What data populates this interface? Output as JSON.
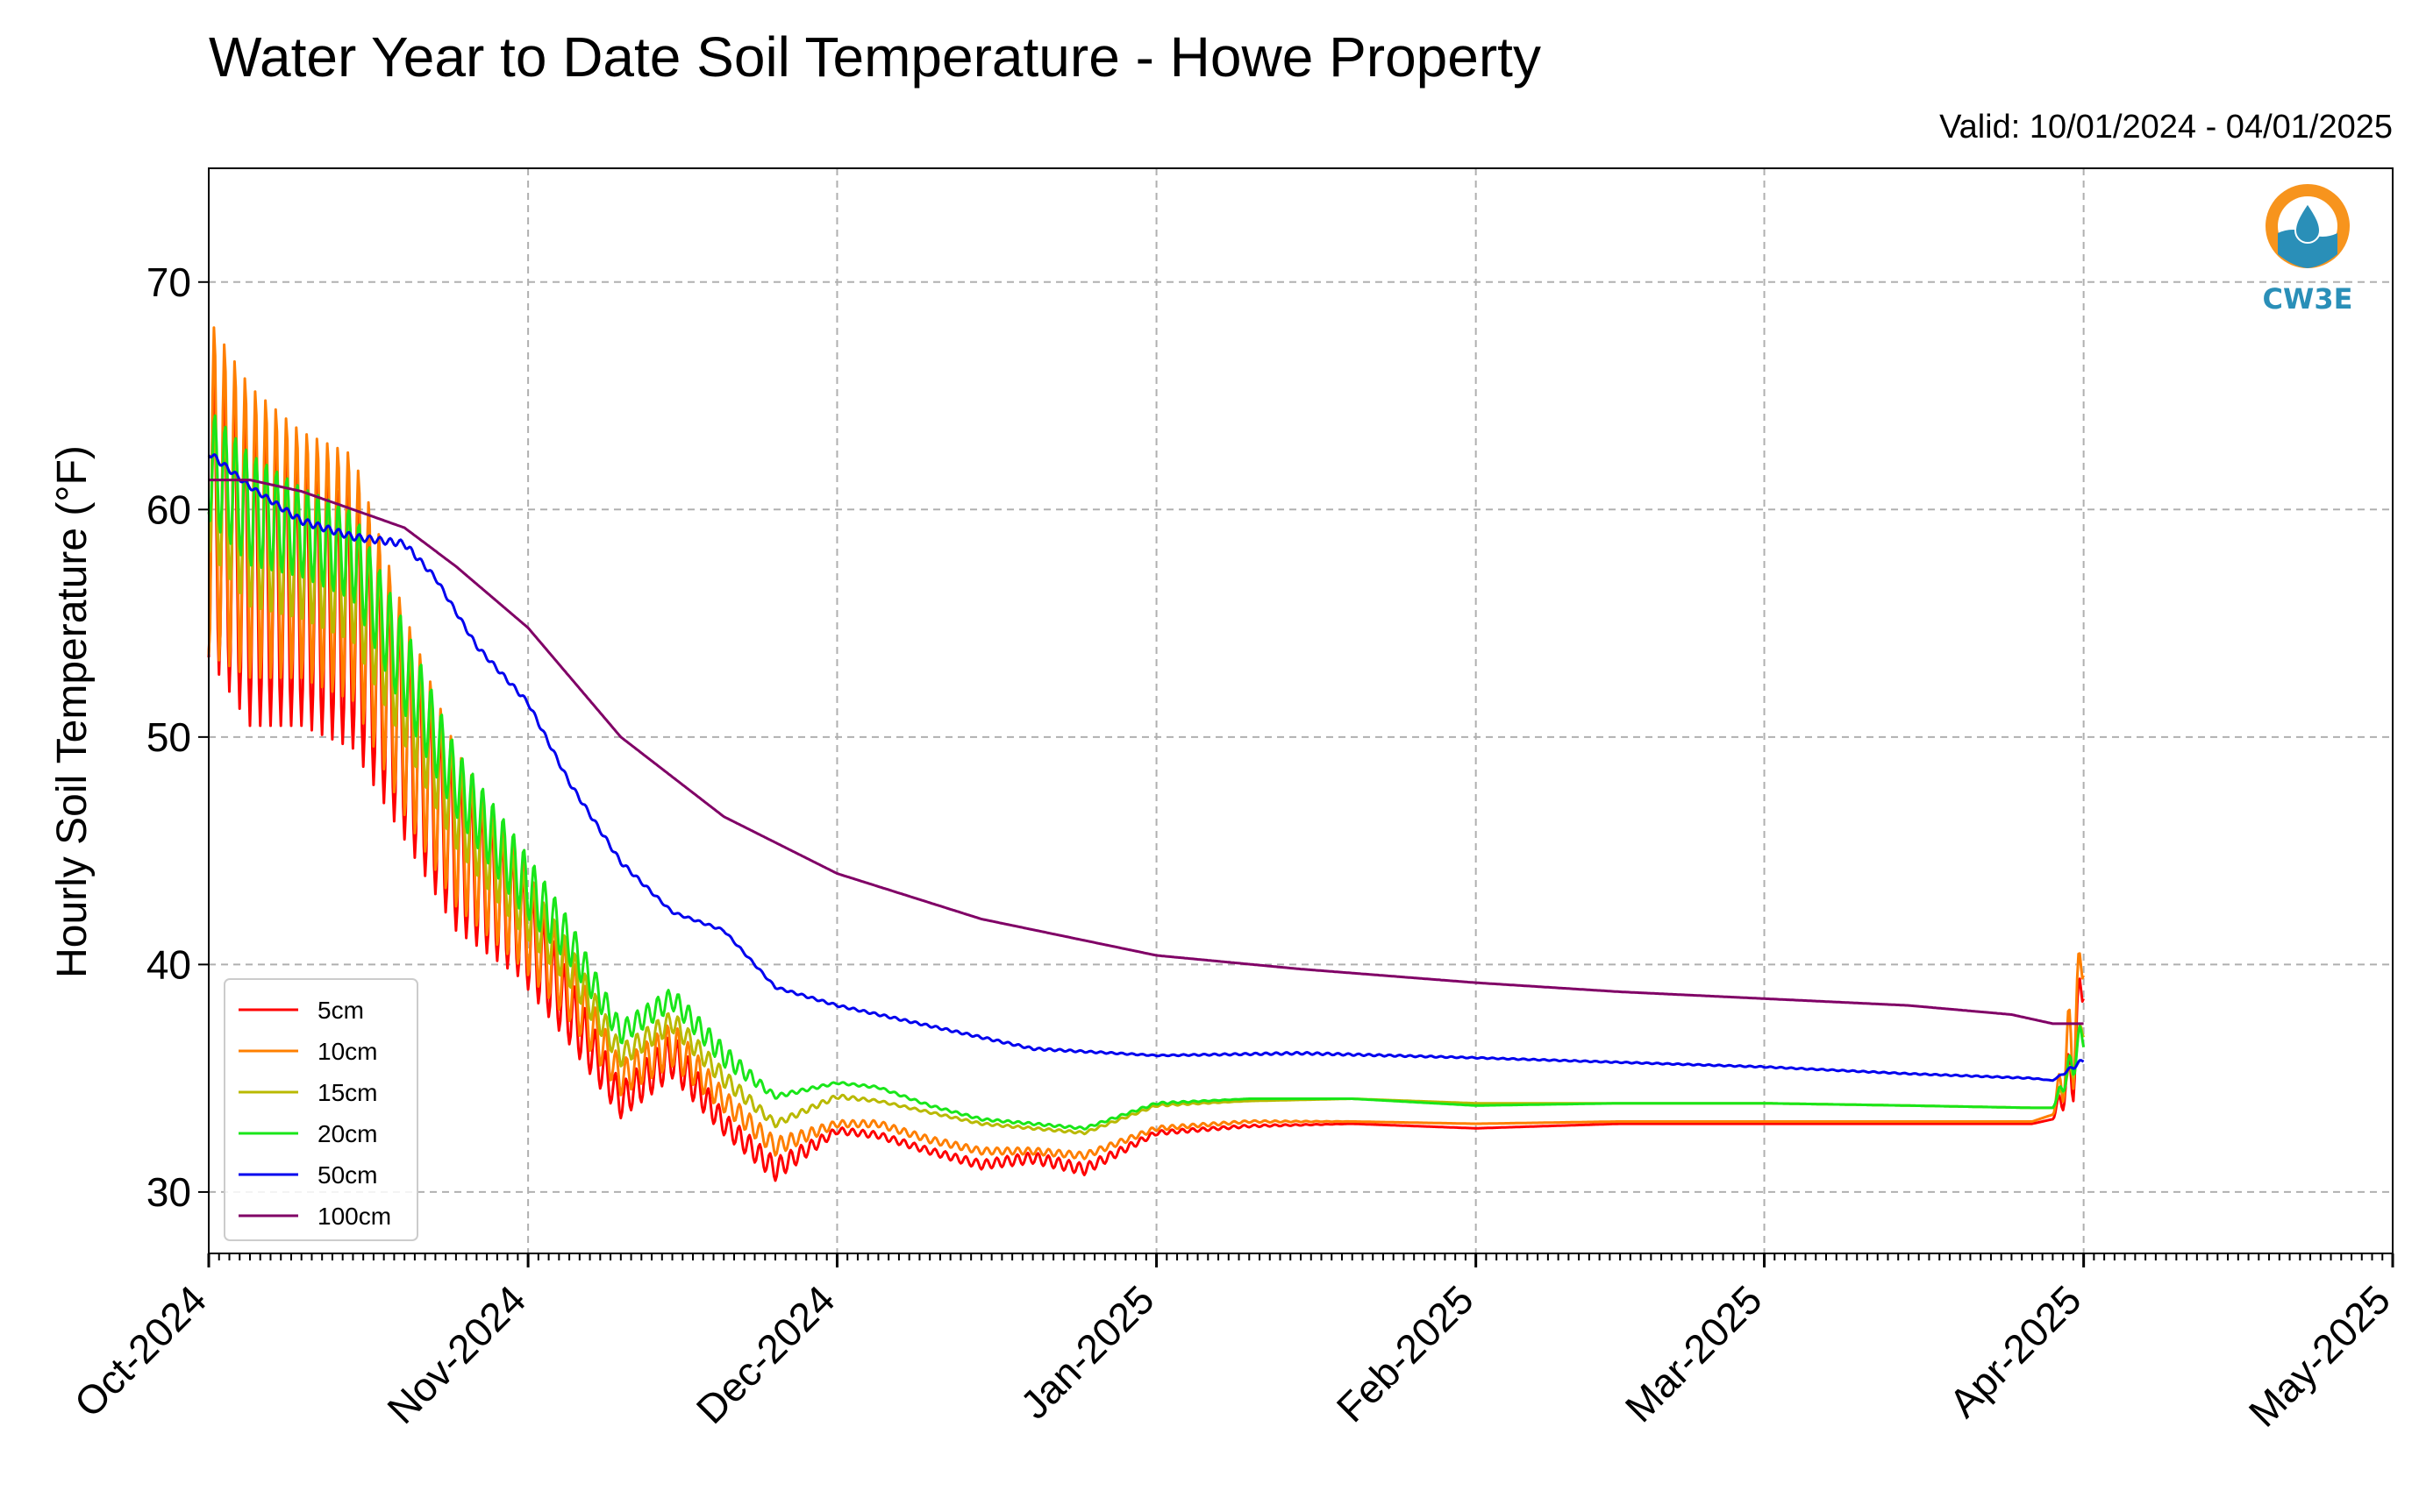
{
  "chart_data": {
    "type": "line",
    "title": "Water Year to Date Soil Temperature - Howe Property",
    "subtitle": "Valid: 10/01/2024 - 04/01/2025",
    "ylabel": "Hourly Soil Temperature (°F)",
    "xlabel": "",
    "ylim": [
      27.3,
      75
    ],
    "xlim": [
      "2024-10-01",
      "2025-05-01"
    ],
    "yticks": [
      30,
      40,
      50,
      60,
      70
    ],
    "xticks": [
      "Oct-2024",
      "Nov-2024",
      "Dec-2024",
      "Jan-2025",
      "Feb-2025",
      "Mar-2025",
      "Apr-2025",
      "May-2025"
    ],
    "grid": true,
    "legend_position": "lower-left",
    "logo_text": "CW3E",
    "series": [
      {
        "name": "5cm",
        "color": "#ff0000",
        "x": [
          "2024-10-01",
          "2024-10-05",
          "2024-10-10",
          "2024-10-15",
          "2024-10-20",
          "2024-10-25",
          "2024-10-31",
          "2024-11-05",
          "2024-11-10",
          "2024-11-15",
          "2024-11-20",
          "2024-11-25",
          "2024-12-01",
          "2024-12-05",
          "2024-12-10",
          "2024-12-15",
          "2024-12-20",
          "2024-12-25",
          "2025-01-01",
          "2025-01-10",
          "2025-01-20",
          "2025-02-01",
          "2025-02-15",
          "2025-03-01",
          "2025-03-15",
          "2025-03-27",
          "2025-03-29",
          "2025-03-31",
          "2025-04-01"
        ],
        "y": [
          60,
          57,
          56,
          55,
          50,
          45,
          42,
          38,
          34,
          36,
          33,
          31,
          32.7,
          32.5,
          31.8,
          31.2,
          31.5,
          31.0,
          32.6,
          32.9,
          33.0,
          32.8,
          33.0,
          33.0,
          33.0,
          33.0,
          33.2,
          35.5,
          40.0
        ],
        "swing": [
          13,
          13,
          11,
          11,
          9,
          7,
          5,
          3,
          1.5,
          2,
          1,
          1,
          0.3,
          0.3,
          0.3,
          0.4,
          0.5,
          0.5,
          0.2,
          0.1,
          0,
          0,
          0,
          0,
          0,
          0,
          0,
          3,
          3
        ]
      },
      {
        "name": "10cm",
        "color": "#ff7f00",
        "x": [
          "2024-10-01",
          "2024-10-05",
          "2024-10-10",
          "2024-10-15",
          "2024-10-20",
          "2024-10-25",
          "2024-10-31",
          "2024-11-05",
          "2024-11-10",
          "2024-11-15",
          "2024-11-20",
          "2024-11-25",
          "2024-12-01",
          "2024-12-05",
          "2024-12-10",
          "2024-12-15",
          "2024-12-20",
          "2024-12-25",
          "2025-01-01",
          "2025-01-10",
          "2025-01-20",
          "2025-02-01",
          "2025-02-15",
          "2025-03-01",
          "2025-03-15",
          "2025-03-27",
          "2025-03-29",
          "2025-03-31",
          "2025-04-01"
        ],
        "y": [
          61,
          59,
          58,
          57,
          51,
          46,
          42.5,
          39,
          35,
          36.5,
          34,
          32,
          33.0,
          33.0,
          32.3,
          31.8,
          31.8,
          31.6,
          32.8,
          33.1,
          33.1,
          33.0,
          33.1,
          33.1,
          33.1,
          33.1,
          33.4,
          37,
          40.5
        ],
        "swing": [
          15,
          13,
          11,
          11,
          9,
          7,
          5,
          3,
          1.5,
          2,
          1,
          0.8,
          0.3,
          0.3,
          0.3,
          0.3,
          0.3,
          0.3,
          0.2,
          0.1,
          0,
          0,
          0,
          0,
          0,
          0,
          0,
          5,
          2
        ]
      },
      {
        "name": "15cm",
        "color": "#b9b900",
        "x": [
          "2024-10-01",
          "2024-10-05",
          "2024-10-10",
          "2024-10-15",
          "2024-10-20",
          "2024-10-25",
          "2024-10-31",
          "2024-11-05",
          "2024-11-10",
          "2024-11-15",
          "2024-11-20",
          "2024-11-25",
          "2024-12-01",
          "2024-12-05",
          "2024-12-10",
          "2024-12-15",
          "2024-12-20",
          "2024-12-25",
          "2025-01-01",
          "2025-01-10",
          "2025-01-20",
          "2025-02-01",
          "2025-02-15",
          "2025-03-01",
          "2025-03-15",
          "2025-03-27",
          "2025-03-29",
          "2025-03-31",
          "2025-04-01"
        ],
        "y": [
          61,
          59,
          58,
          57,
          52,
          47,
          43,
          40,
          36,
          37.5,
          35,
          33,
          34.2,
          34.0,
          33.5,
          33.0,
          32.8,
          32.6,
          33.8,
          34.0,
          34.1,
          33.9,
          33.9,
          33.9,
          33.8,
          33.7,
          33.7,
          35.5,
          37.5
        ],
        "swing": [
          6,
          7,
          6,
          6,
          5,
          4,
          3,
          2,
          1,
          1,
          0.8,
          0.3,
          0.2,
          0.1,
          0.1,
          0.1,
          0.1,
          0.1,
          0.1,
          0,
          0,
          0,
          0,
          0,
          0,
          0,
          0,
          1,
          1.5
        ]
      },
      {
        "name": "20cm",
        "color": "#19e619",
        "x": [
          "2024-10-01",
          "2024-10-05",
          "2024-10-10",
          "2024-10-15",
          "2024-10-20",
          "2024-10-25",
          "2024-10-31",
          "2024-11-05",
          "2024-11-10",
          "2024-11-15",
          "2024-11-20",
          "2024-11-25",
          "2024-12-01",
          "2024-12-05",
          "2024-12-10",
          "2024-12-15",
          "2024-12-20",
          "2024-12-25",
          "2025-01-01",
          "2025-01-10",
          "2025-01-20",
          "2025-02-01",
          "2025-02-15",
          "2025-03-01",
          "2025-03-15",
          "2025-03-27",
          "2025-03-29",
          "2025-03-31",
          "2025-04-01"
        ],
        "y": [
          62,
          60,
          59,
          58,
          53,
          48,
          44,
          41,
          37,
          38.5,
          36,
          34.2,
          34.8,
          34.6,
          33.8,
          33.2,
          33.0,
          32.8,
          33.9,
          34.1,
          34.1,
          33.8,
          33.9,
          33.9,
          33.8,
          33.7,
          33.7,
          35.8,
          37.0
        ],
        "swing": [
          5,
          5,
          4,
          4,
          4,
          3,
          3,
          2,
          1,
          1,
          1,
          0.2,
          0.1,
          0.1,
          0.1,
          0.1,
          0.1,
          0.1,
          0.1,
          0,
          0,
          0,
          0,
          0,
          0,
          0,
          0,
          1.5,
          1.5
        ]
      },
      {
        "name": "50cm",
        "color": "#0000ee",
        "x": [
          "2024-10-01",
          "2024-10-05",
          "2024-10-10",
          "2024-10-15",
          "2024-10-20",
          "2024-10-23",
          "2024-10-27",
          "2024-11-01",
          "2024-11-05",
          "2024-11-10",
          "2024-11-15",
          "2024-11-20",
          "2024-11-25",
          "2024-12-01",
          "2024-12-10",
          "2024-12-20",
          "2025-01-01",
          "2025-01-15",
          "2025-02-01",
          "2025-02-15",
          "2025-03-01",
          "2025-03-15",
          "2025-03-27",
          "2025-03-29",
          "2025-03-31",
          "2025-04-01"
        ],
        "y": [
          62.5,
          61,
          59.5,
          58.8,
          58.5,
          57,
          54,
          51.5,
          48,
          44.5,
          42.3,
          41.5,
          39,
          38.2,
          37.3,
          36.3,
          36.0,
          36.1,
          35.9,
          35.7,
          35.5,
          35.2,
          35.0,
          34.9,
          35.5,
          35.8
        ],
        "swing": [
          0.3,
          0.2,
          0.3,
          0.3,
          0.3,
          0.2,
          0.2,
          0.2,
          0.2,
          0.2,
          0.1,
          0.1,
          0.1,
          0.1,
          0.1,
          0.1,
          0.05,
          0.1,
          0.05,
          0.05,
          0.05,
          0.05,
          0.05,
          0,
          0.2,
          0.2
        ]
      },
      {
        "name": "100cm",
        "color": "#800066",
        "x": [
          "2024-10-01",
          "2024-10-05",
          "2024-10-10",
          "2024-10-15",
          "2024-10-20",
          "2024-10-25",
          "2024-11-01",
          "2024-11-10",
          "2024-11-20",
          "2024-12-01",
          "2024-12-15",
          "2025-01-01",
          "2025-01-15",
          "2025-02-01",
          "2025-02-15",
          "2025-03-01",
          "2025-03-15",
          "2025-03-25",
          "2025-03-27",
          "2025-03-29",
          "2025-04-01"
        ],
        "y": [
          61.3,
          61.3,
          60.8,
          60.0,
          59.2,
          57.5,
          54.8,
          50.0,
          46.5,
          44.0,
          42.0,
          40.4,
          39.8,
          39.2,
          38.8,
          38.5,
          38.2,
          37.8,
          37.6,
          37.4,
          37.4
        ],
        "swing": [
          0,
          0,
          0,
          0,
          0,
          0,
          0,
          0,
          0,
          0,
          0,
          0,
          0,
          0,
          0,
          0,
          0,
          0,
          0,
          0,
          0
        ]
      }
    ]
  }
}
